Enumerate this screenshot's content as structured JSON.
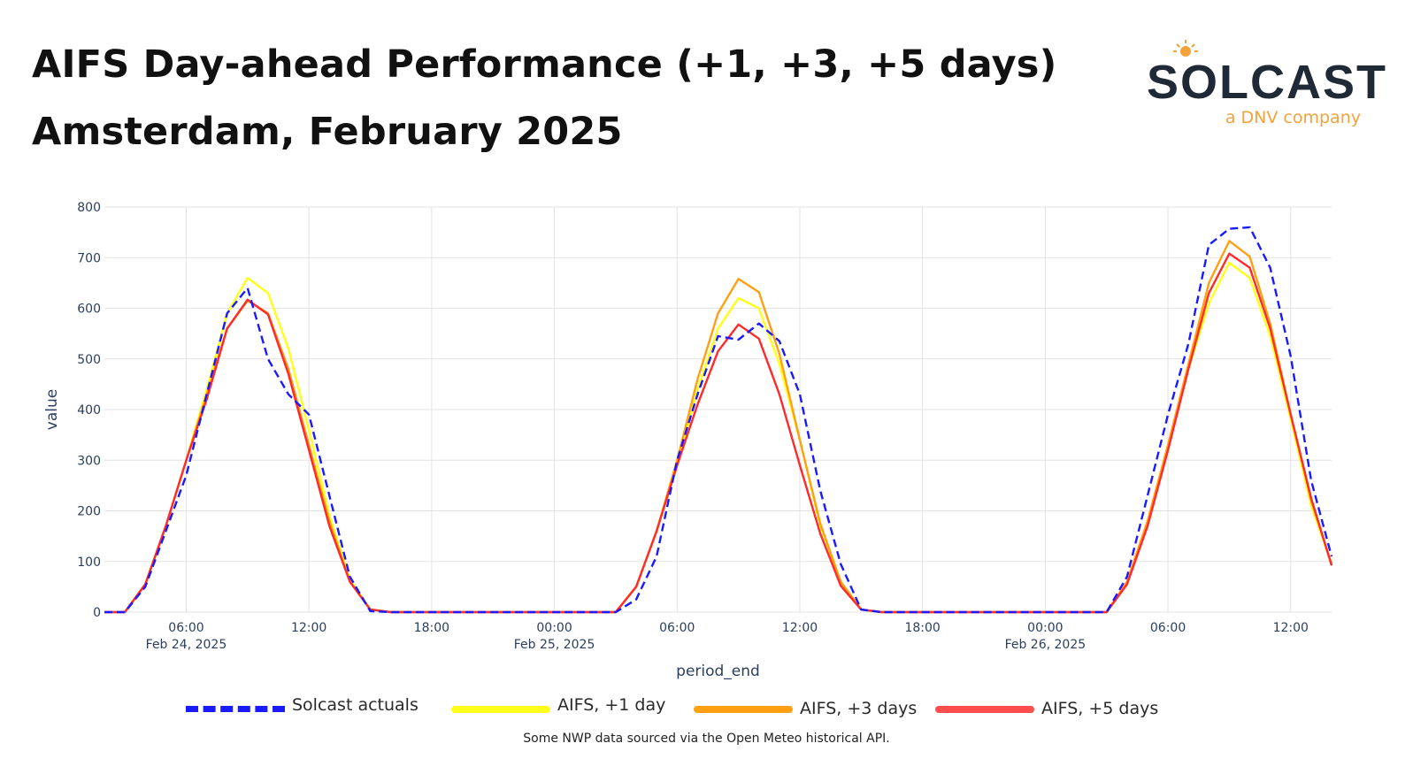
{
  "header": {
    "title_line1": "AIFS Day-ahead Performance (+1, +3, +5 days)",
    "title_line2": "Amsterdam, February 2025"
  },
  "logo": {
    "wordmark": "SOLCAST",
    "tagline": "a DNV company"
  },
  "footnote": "Some NWP data sourced via the Open Meteo historical API.",
  "chart_data": {
    "type": "line",
    "xlabel": "period_end",
    "ylabel": "value",
    "x_range": [
      "2025-02-24T02:00",
      "2025-02-26T14:00"
    ],
    "ylim": [
      0,
      800
    ],
    "y_ticks": [
      0,
      100,
      200,
      300,
      400,
      500,
      600,
      700,
      800
    ],
    "x_ticks": [
      {
        "time": "2025-02-24T06:00",
        "label": "06:00",
        "sublabel": "Feb 24, 2025"
      },
      {
        "time": "2025-02-24T12:00",
        "label": "12:00",
        "sublabel": ""
      },
      {
        "time": "2025-02-24T18:00",
        "label": "18:00",
        "sublabel": ""
      },
      {
        "time": "2025-02-25T00:00",
        "label": "00:00",
        "sublabel": "Feb 25, 2025"
      },
      {
        "time": "2025-02-25T06:00",
        "label": "06:00",
        "sublabel": ""
      },
      {
        "time": "2025-02-25T12:00",
        "label": "12:00",
        "sublabel": ""
      },
      {
        "time": "2025-02-25T18:00",
        "label": "18:00",
        "sublabel": ""
      },
      {
        "time": "2025-02-26T00:00",
        "label": "00:00",
        "sublabel": "Feb 26, 2025"
      },
      {
        "time": "2025-02-26T06:00",
        "label": "06:00",
        "sublabel": ""
      },
      {
        "time": "2025-02-26T12:00",
        "label": "12:00",
        "sublabel": ""
      }
    ],
    "grid": true,
    "legend_position": "bottom",
    "series": [
      {
        "name": "Solcast actuals",
        "color": "#1a1aff",
        "dash": "dashed",
        "points": [
          [
            "2025-02-24T02:00",
            0
          ],
          [
            "2025-02-24T03:00",
            0
          ],
          [
            "2025-02-24T04:00",
            50
          ],
          [
            "2025-02-24T05:00",
            160
          ],
          [
            "2025-02-24T06:00",
            270
          ],
          [
            "2025-02-24T07:00",
            430
          ],
          [
            "2025-02-24T08:00",
            590
          ],
          [
            "2025-02-24T09:00",
            640
          ],
          [
            "2025-02-24T10:00",
            500
          ],
          [
            "2025-02-24T11:00",
            430
          ],
          [
            "2025-02-24T12:00",
            390
          ],
          [
            "2025-02-24T13:00",
            230
          ],
          [
            "2025-02-24T14:00",
            70
          ],
          [
            "2025-02-24T15:00",
            2
          ],
          [
            "2025-02-24T16:00",
            0
          ],
          [
            "2025-02-24T18:00",
            0
          ],
          [
            "2025-02-25T00:00",
            0
          ],
          [
            "2025-02-25T03:00",
            0
          ],
          [
            "2025-02-25T04:00",
            25
          ],
          [
            "2025-02-25T05:00",
            110
          ],
          [
            "2025-02-25T06:00",
            300
          ],
          [
            "2025-02-25T07:00",
            430
          ],
          [
            "2025-02-25T08:00",
            545
          ],
          [
            "2025-02-25T09:00",
            538
          ],
          [
            "2025-02-25T10:00",
            570
          ],
          [
            "2025-02-25T11:00",
            535
          ],
          [
            "2025-02-25T12:00",
            430
          ],
          [
            "2025-02-25T13:00",
            240
          ],
          [
            "2025-02-25T14:00",
            95
          ],
          [
            "2025-02-25T15:00",
            5
          ],
          [
            "2025-02-25T16:00",
            0
          ],
          [
            "2025-02-25T18:00",
            0
          ],
          [
            "2025-02-26T00:00",
            0
          ],
          [
            "2025-02-26T03:00",
            0
          ],
          [
            "2025-02-26T04:00",
            70
          ],
          [
            "2025-02-26T05:00",
            230
          ],
          [
            "2025-02-26T06:00",
            390
          ],
          [
            "2025-02-26T07:00",
            530
          ],
          [
            "2025-02-26T08:00",
            725
          ],
          [
            "2025-02-26T09:00",
            757
          ],
          [
            "2025-02-26T10:00",
            760
          ],
          [
            "2025-02-26T11:00",
            680
          ],
          [
            "2025-02-26T12:00",
            505
          ],
          [
            "2025-02-26T13:00",
            260
          ],
          [
            "2025-02-26T14:00",
            110
          ]
        ]
      },
      {
        "name": "AIFS, +1 day",
        "color": "#ffff1a",
        "dash": "solid",
        "points": [
          [
            "2025-02-24T02:00",
            0
          ],
          [
            "2025-02-24T03:00",
            0
          ],
          [
            "2025-02-24T04:00",
            55
          ],
          [
            "2025-02-24T05:00",
            170
          ],
          [
            "2025-02-24T06:00",
            300
          ],
          [
            "2025-02-24T07:00",
            440
          ],
          [
            "2025-02-24T08:00",
            590
          ],
          [
            "2025-02-24T09:00",
            660
          ],
          [
            "2025-02-24T10:00",
            630
          ],
          [
            "2025-02-24T11:00",
            520
          ],
          [
            "2025-02-24T12:00",
            360
          ],
          [
            "2025-02-24T13:00",
            190
          ],
          [
            "2025-02-24T14:00",
            65
          ],
          [
            "2025-02-24T15:00",
            5
          ],
          [
            "2025-02-24T16:00",
            0
          ],
          [
            "2025-02-24T18:00",
            0
          ],
          [
            "2025-02-25T00:00",
            0
          ],
          [
            "2025-02-25T03:00",
            0
          ],
          [
            "2025-02-25T04:00",
            50
          ],
          [
            "2025-02-25T05:00",
            160
          ],
          [
            "2025-02-25T06:00",
            290
          ],
          [
            "2025-02-25T07:00",
            440
          ],
          [
            "2025-02-25T08:00",
            560
          ],
          [
            "2025-02-25T09:00",
            620
          ],
          [
            "2025-02-25T10:00",
            600
          ],
          [
            "2025-02-25T11:00",
            490
          ],
          [
            "2025-02-25T12:00",
            340
          ],
          [
            "2025-02-25T13:00",
            170
          ],
          [
            "2025-02-25T14:00",
            60
          ],
          [
            "2025-02-25T15:00",
            5
          ],
          [
            "2025-02-25T16:00",
            0
          ],
          [
            "2025-02-25T18:00",
            0
          ],
          [
            "2025-02-26T00:00",
            0
          ],
          [
            "2025-02-26T03:00",
            0
          ],
          [
            "2025-02-26T04:00",
            55
          ],
          [
            "2025-02-26T05:00",
            180
          ],
          [
            "2025-02-26T06:00",
            330
          ],
          [
            "2025-02-26T07:00",
            480
          ],
          [
            "2025-02-26T08:00",
            610
          ],
          [
            "2025-02-26T09:00",
            690
          ],
          [
            "2025-02-26T10:00",
            660
          ],
          [
            "2025-02-26T11:00",
            545
          ],
          [
            "2025-02-26T12:00",
            380
          ],
          [
            "2025-02-26T13:00",
            210
          ],
          [
            "2025-02-26T14:00",
            95
          ]
        ]
      },
      {
        "name": "AIFS, +3 days",
        "color": "#ffa012",
        "dash": "solid",
        "points": [
          [
            "2025-02-24T02:00",
            0
          ],
          [
            "2025-02-24T03:00",
            0
          ],
          [
            "2025-02-24T04:00",
            55
          ],
          [
            "2025-02-24T05:00",
            170
          ],
          [
            "2025-02-24T06:00",
            300
          ],
          [
            "2025-02-24T07:00",
            430
          ],
          [
            "2025-02-24T08:00",
            560
          ],
          [
            "2025-02-24T09:00",
            615
          ],
          [
            "2025-02-24T10:00",
            590
          ],
          [
            "2025-02-24T11:00",
            480
          ],
          [
            "2025-02-24T12:00",
            330
          ],
          [
            "2025-02-24T13:00",
            180
          ],
          [
            "2025-02-24T14:00",
            60
          ],
          [
            "2025-02-24T15:00",
            5
          ],
          [
            "2025-02-24T16:00",
            0
          ],
          [
            "2025-02-24T18:00",
            0
          ],
          [
            "2025-02-25T00:00",
            0
          ],
          [
            "2025-02-25T03:00",
            0
          ],
          [
            "2025-02-25T04:00",
            50
          ],
          [
            "2025-02-25T05:00",
            160
          ],
          [
            "2025-02-25T06:00",
            300
          ],
          [
            "2025-02-25T07:00",
            460
          ],
          [
            "2025-02-25T08:00",
            590
          ],
          [
            "2025-02-25T09:00",
            658
          ],
          [
            "2025-02-25T10:00",
            632
          ],
          [
            "2025-02-25T11:00",
            510
          ],
          [
            "2025-02-25T12:00",
            340
          ],
          [
            "2025-02-25T13:00",
            175
          ],
          [
            "2025-02-25T14:00",
            60
          ],
          [
            "2025-02-25T15:00",
            5
          ],
          [
            "2025-02-25T16:00",
            0
          ],
          [
            "2025-02-25T18:00",
            0
          ],
          [
            "2025-02-26T00:00",
            0
          ],
          [
            "2025-02-26T03:00",
            0
          ],
          [
            "2025-02-26T04:00",
            60
          ],
          [
            "2025-02-26T05:00",
            180
          ],
          [
            "2025-02-26T06:00",
            330
          ],
          [
            "2025-02-26T07:00",
            490
          ],
          [
            "2025-02-26T08:00",
            650
          ],
          [
            "2025-02-26T09:00",
            733
          ],
          [
            "2025-02-26T10:00",
            702
          ],
          [
            "2025-02-26T11:00",
            570
          ],
          [
            "2025-02-26T12:00",
            390
          ],
          [
            "2025-02-26T13:00",
            220
          ],
          [
            "2025-02-26T14:00",
            95
          ]
        ]
      },
      {
        "name": "AIFS, +5 days",
        "color": "#ff2a2a",
        "dash": "solid",
        "points": [
          [
            "2025-02-24T02:00",
            0
          ],
          [
            "2025-02-24T03:00",
            0
          ],
          [
            "2025-02-24T04:00",
            55
          ],
          [
            "2025-02-24T05:00",
            170
          ],
          [
            "2025-02-24T06:00",
            300
          ],
          [
            "2025-02-24T07:00",
            420
          ],
          [
            "2025-02-24T08:00",
            560
          ],
          [
            "2025-02-24T09:00",
            617
          ],
          [
            "2025-02-24T10:00",
            588
          ],
          [
            "2025-02-24T11:00",
            470
          ],
          [
            "2025-02-24T12:00",
            320
          ],
          [
            "2025-02-24T13:00",
            170
          ],
          [
            "2025-02-24T14:00",
            60
          ],
          [
            "2025-02-24T15:00",
            5
          ],
          [
            "2025-02-24T16:00",
            0
          ],
          [
            "2025-02-24T18:00",
            0
          ],
          [
            "2025-02-25T00:00",
            0
          ],
          [
            "2025-02-25T03:00",
            0
          ],
          [
            "2025-02-25T04:00",
            50
          ],
          [
            "2025-02-25T05:00",
            160
          ],
          [
            "2025-02-25T06:00",
            290
          ],
          [
            "2025-02-25T07:00",
            410
          ],
          [
            "2025-02-25T08:00",
            515
          ],
          [
            "2025-02-25T09:00",
            568
          ],
          [
            "2025-02-25T10:00",
            540
          ],
          [
            "2025-02-25T11:00",
            430
          ],
          [
            "2025-02-25T12:00",
            290
          ],
          [
            "2025-02-25T13:00",
            155
          ],
          [
            "2025-02-25T14:00",
            52
          ],
          [
            "2025-02-25T15:00",
            5
          ],
          [
            "2025-02-25T16:00",
            0
          ],
          [
            "2025-02-25T18:00",
            0
          ],
          [
            "2025-02-26T00:00",
            0
          ],
          [
            "2025-02-26T03:00",
            0
          ],
          [
            "2025-02-26T04:00",
            55
          ],
          [
            "2025-02-26T05:00",
            170
          ],
          [
            "2025-02-26T06:00",
            320
          ],
          [
            "2025-02-26T07:00",
            480
          ],
          [
            "2025-02-26T08:00",
            630
          ],
          [
            "2025-02-26T09:00",
            708
          ],
          [
            "2025-02-26T10:00",
            680
          ],
          [
            "2025-02-26T11:00",
            560
          ],
          [
            "2025-02-26T12:00",
            390
          ],
          [
            "2025-02-26T13:00",
            225
          ],
          [
            "2025-02-26T14:00",
            92
          ]
        ]
      }
    ]
  }
}
